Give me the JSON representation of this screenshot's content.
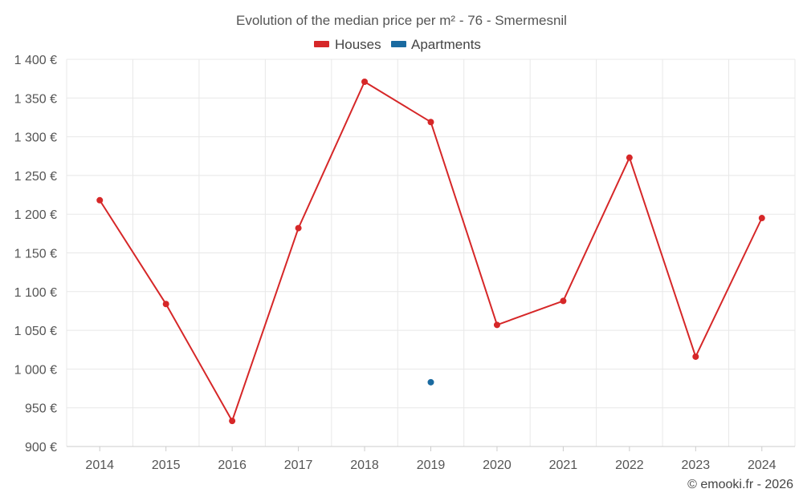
{
  "chart_data": {
    "type": "line",
    "title": "Evolution of the median price per m² - 76 - Smermesnil",
    "categories": [
      "2014",
      "2015",
      "2016",
      "2017",
      "2018",
      "2019",
      "2020",
      "2021",
      "2022",
      "2023",
      "2024"
    ],
    "series": [
      {
        "name": "Houses",
        "color": "#d62728",
        "values": [
          1218,
          1084,
          933,
          1182,
          1371,
          1319,
          1057,
          1088,
          1273,
          1016,
          1195
        ]
      },
      {
        "name": "Apartments",
        "color": "#1a6aa0",
        "values": [
          null,
          null,
          null,
          null,
          null,
          983,
          null,
          null,
          null,
          null,
          null
        ]
      }
    ],
    "ylim": [
      900,
      1400
    ],
    "yticks": [
      900,
      950,
      1000,
      1050,
      1100,
      1150,
      1200,
      1250,
      1300,
      1350,
      1400
    ],
    "ytick_labels": [
      "900 €",
      "950 €",
      "1 000 €",
      "1 050 €",
      "1 100 €",
      "1 150 €",
      "1 200 €",
      "1 250 €",
      "1 300 €",
      "1 350 €",
      "1 400 €"
    ],
    "xlabel": "",
    "ylabel": "",
    "grid": true,
    "legend_position": "top-center"
  },
  "credit": "© emooki.fr - 2026"
}
